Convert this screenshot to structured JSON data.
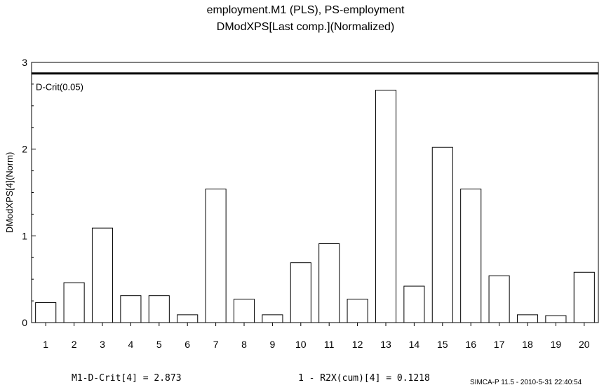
{
  "chart_data": {
    "type": "bar",
    "title": "employment.M1 (PLS), PS-employment",
    "subtitle": "DModXPS[Last comp.](Normalized)",
    "xlabel": "",
    "ylabel": "DModXPS[4](Norm)",
    "categories": [
      "1",
      "2",
      "3",
      "4",
      "5",
      "6",
      "7",
      "8",
      "9",
      "10",
      "11",
      "12",
      "13",
      "14",
      "15",
      "16",
      "17",
      "18",
      "19",
      "20"
    ],
    "values": [
      0.23,
      0.46,
      1.09,
      0.31,
      0.31,
      0.09,
      1.54,
      0.27,
      0.09,
      0.69,
      0.91,
      0.27,
      2.68,
      0.42,
      2.02,
      1.54,
      0.54,
      0.09,
      0.08,
      0.58
    ],
    "ylim": [
      0,
      3
    ],
    "yticks": [
      "0",
      "1",
      "2",
      "3"
    ],
    "reference_line": {
      "value": 2.873,
      "label": "D-Crit(0.05)"
    },
    "bar_color": "#ffffff",
    "grid": false,
    "legend": "none"
  },
  "footer": {
    "dcrit": "M1-D-Crit[4] = 2.873",
    "r2x": "1 - R2X(cum)[4] = 0.1218",
    "stamp": "SIMCA-P 11.5 - 2010-5-31 22:40:54"
  }
}
